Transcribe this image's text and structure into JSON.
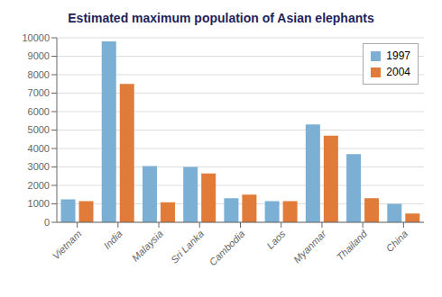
{
  "chart_data": {
    "type": "bar",
    "title": "Estimated maximum population of Asian elephants",
    "categories": [
      "Vietnam",
      "India",
      "Malaysia",
      "Sri Lanka",
      "Cambodia",
      "Laos",
      "Myanmar",
      "Thailand",
      "China"
    ],
    "series": [
      {
        "name": "1997",
        "color": "#7BAFD4",
        "values": [
          1250,
          9800,
          3050,
          3000,
          1300,
          1150,
          5300,
          3700,
          1000
        ]
      },
      {
        "name": "2004",
        "color": "#E07B39",
        "values": [
          1150,
          7500,
          1080,
          2650,
          1500,
          1150,
          4700,
          1300,
          470
        ]
      }
    ],
    "ylim": [
      0,
      10000
    ],
    "yticks": [
      0,
      1000,
      2000,
      3000,
      4000,
      5000,
      6000,
      7000,
      8000,
      9000,
      10000
    ],
    "grid": true,
    "legend": "upper right"
  }
}
